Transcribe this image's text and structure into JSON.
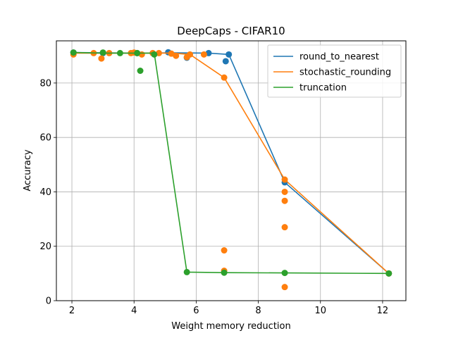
{
  "chart_data": {
    "type": "line",
    "title": "DeepCaps - CIFAR10",
    "xlabel": "Weight memory reduction",
    "ylabel": "Accuracy",
    "xlim": [
      1.5,
      12.75
    ],
    "ylim": [
      0,
      95.5
    ],
    "xticks": [
      2,
      4,
      6,
      8,
      10,
      12
    ],
    "yticks": [
      0,
      20,
      40,
      60,
      80
    ],
    "grid": true,
    "legend_position": "top-right",
    "series": [
      {
        "name": "round_to_nearest",
        "color": "#1f77b4",
        "line": [
          [
            2.05,
            91.2
          ],
          [
            4.1,
            91.0
          ],
          [
            5.1,
            91.1
          ],
          [
            6.4,
            91.0
          ],
          [
            7.05,
            90.5
          ],
          [
            8.85,
            43.5
          ],
          [
            12.2,
            10.0
          ]
        ],
        "points": [
          [
            2.05,
            91.2
          ],
          [
            3.0,
            91.0
          ],
          [
            4.1,
            91.0
          ],
          [
            5.1,
            91.3
          ],
          [
            5.7,
            89.3
          ],
          [
            6.4,
            91.0
          ],
          [
            6.95,
            88.0
          ],
          [
            7.05,
            90.5
          ],
          [
            8.85,
            43.5
          ],
          [
            12.2,
            10.0
          ]
        ]
      },
      {
        "name": "stochastic_rounding",
        "color": "#ff7f0e",
        "line": [
          [
            2.05,
            91.0
          ],
          [
            3.2,
            91.0
          ],
          [
            4.0,
            91.0
          ],
          [
            5.2,
            91.0
          ],
          [
            5.8,
            90.5
          ],
          [
            6.9,
            82.0
          ],
          [
            8.85,
            44.5
          ],
          [
            12.2,
            10.0
          ]
        ],
        "points": [
          [
            2.05,
            90.5
          ],
          [
            2.7,
            91.0
          ],
          [
            2.95,
            89.0
          ],
          [
            3.2,
            91.0
          ],
          [
            3.9,
            91.0
          ],
          [
            4.0,
            91.2
          ],
          [
            4.25,
            90.5
          ],
          [
            4.6,
            91.0
          ],
          [
            4.8,
            91.0
          ],
          [
            5.2,
            90.8
          ],
          [
            5.35,
            90.0
          ],
          [
            5.7,
            89.5
          ],
          [
            5.8,
            90.5
          ],
          [
            6.25,
            90.5
          ],
          [
            6.9,
            82.0
          ],
          [
            6.9,
            18.5
          ],
          [
            6.9,
            11.0
          ],
          [
            8.85,
            44.5
          ],
          [
            8.85,
            40.0
          ],
          [
            8.85,
            36.7
          ],
          [
            8.85,
            27.0
          ],
          [
            8.85,
            5.0
          ],
          [
            12.2,
            10.0
          ]
        ]
      },
      {
        "name": "truncation",
        "color": "#2ca02c",
        "line": [
          [
            2.05,
            91.2
          ],
          [
            3.0,
            91.0
          ],
          [
            4.1,
            91.0
          ],
          [
            4.65,
            91.0
          ],
          [
            5.7,
            10.5
          ],
          [
            6.9,
            10.3
          ],
          [
            8.85,
            10.2
          ],
          [
            12.2,
            10.0
          ]
        ],
        "points": [
          [
            2.05,
            91.2
          ],
          [
            3.0,
            91.2
          ],
          [
            3.55,
            91.0
          ],
          [
            4.1,
            91.0
          ],
          [
            4.2,
            84.5
          ],
          [
            4.65,
            90.5
          ],
          [
            5.7,
            10.5
          ],
          [
            6.9,
            10.3
          ],
          [
            8.85,
            10.2
          ],
          [
            12.2,
            10.0
          ]
        ]
      }
    ]
  }
}
